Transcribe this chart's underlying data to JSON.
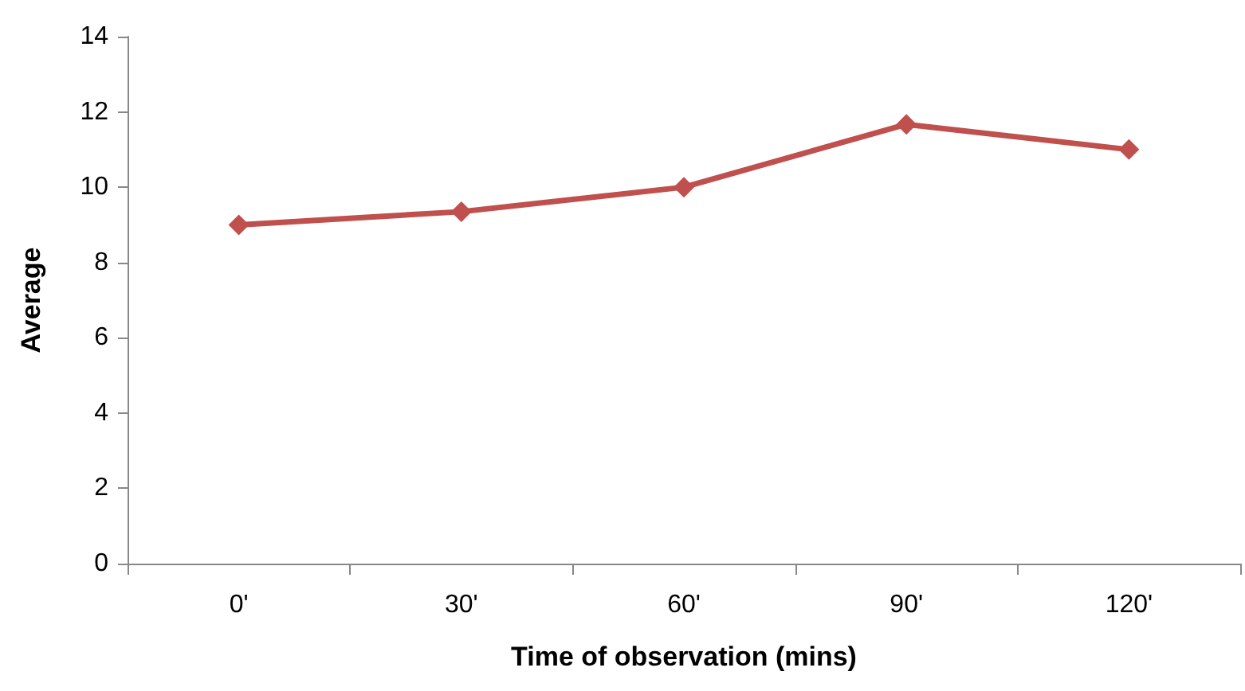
{
  "chart_data": {
    "type": "line",
    "xlabel": "Time of observation (mins)",
    "ylabel": "Average",
    "categories": [
      "0'",
      "30'",
      "60'",
      "90'",
      "120'"
    ],
    "series": [
      {
        "color": "#c0504d",
        "values": [
          9,
          9.35,
          10,
          11.67,
          11
        ]
      }
    ],
    "ylim": [
      0,
      14
    ],
    "yticks": [
      0,
      2,
      4,
      6,
      8,
      10,
      12,
      14
    ],
    "grid": false,
    "marker": "diamond",
    "line_style": "solid"
  }
}
